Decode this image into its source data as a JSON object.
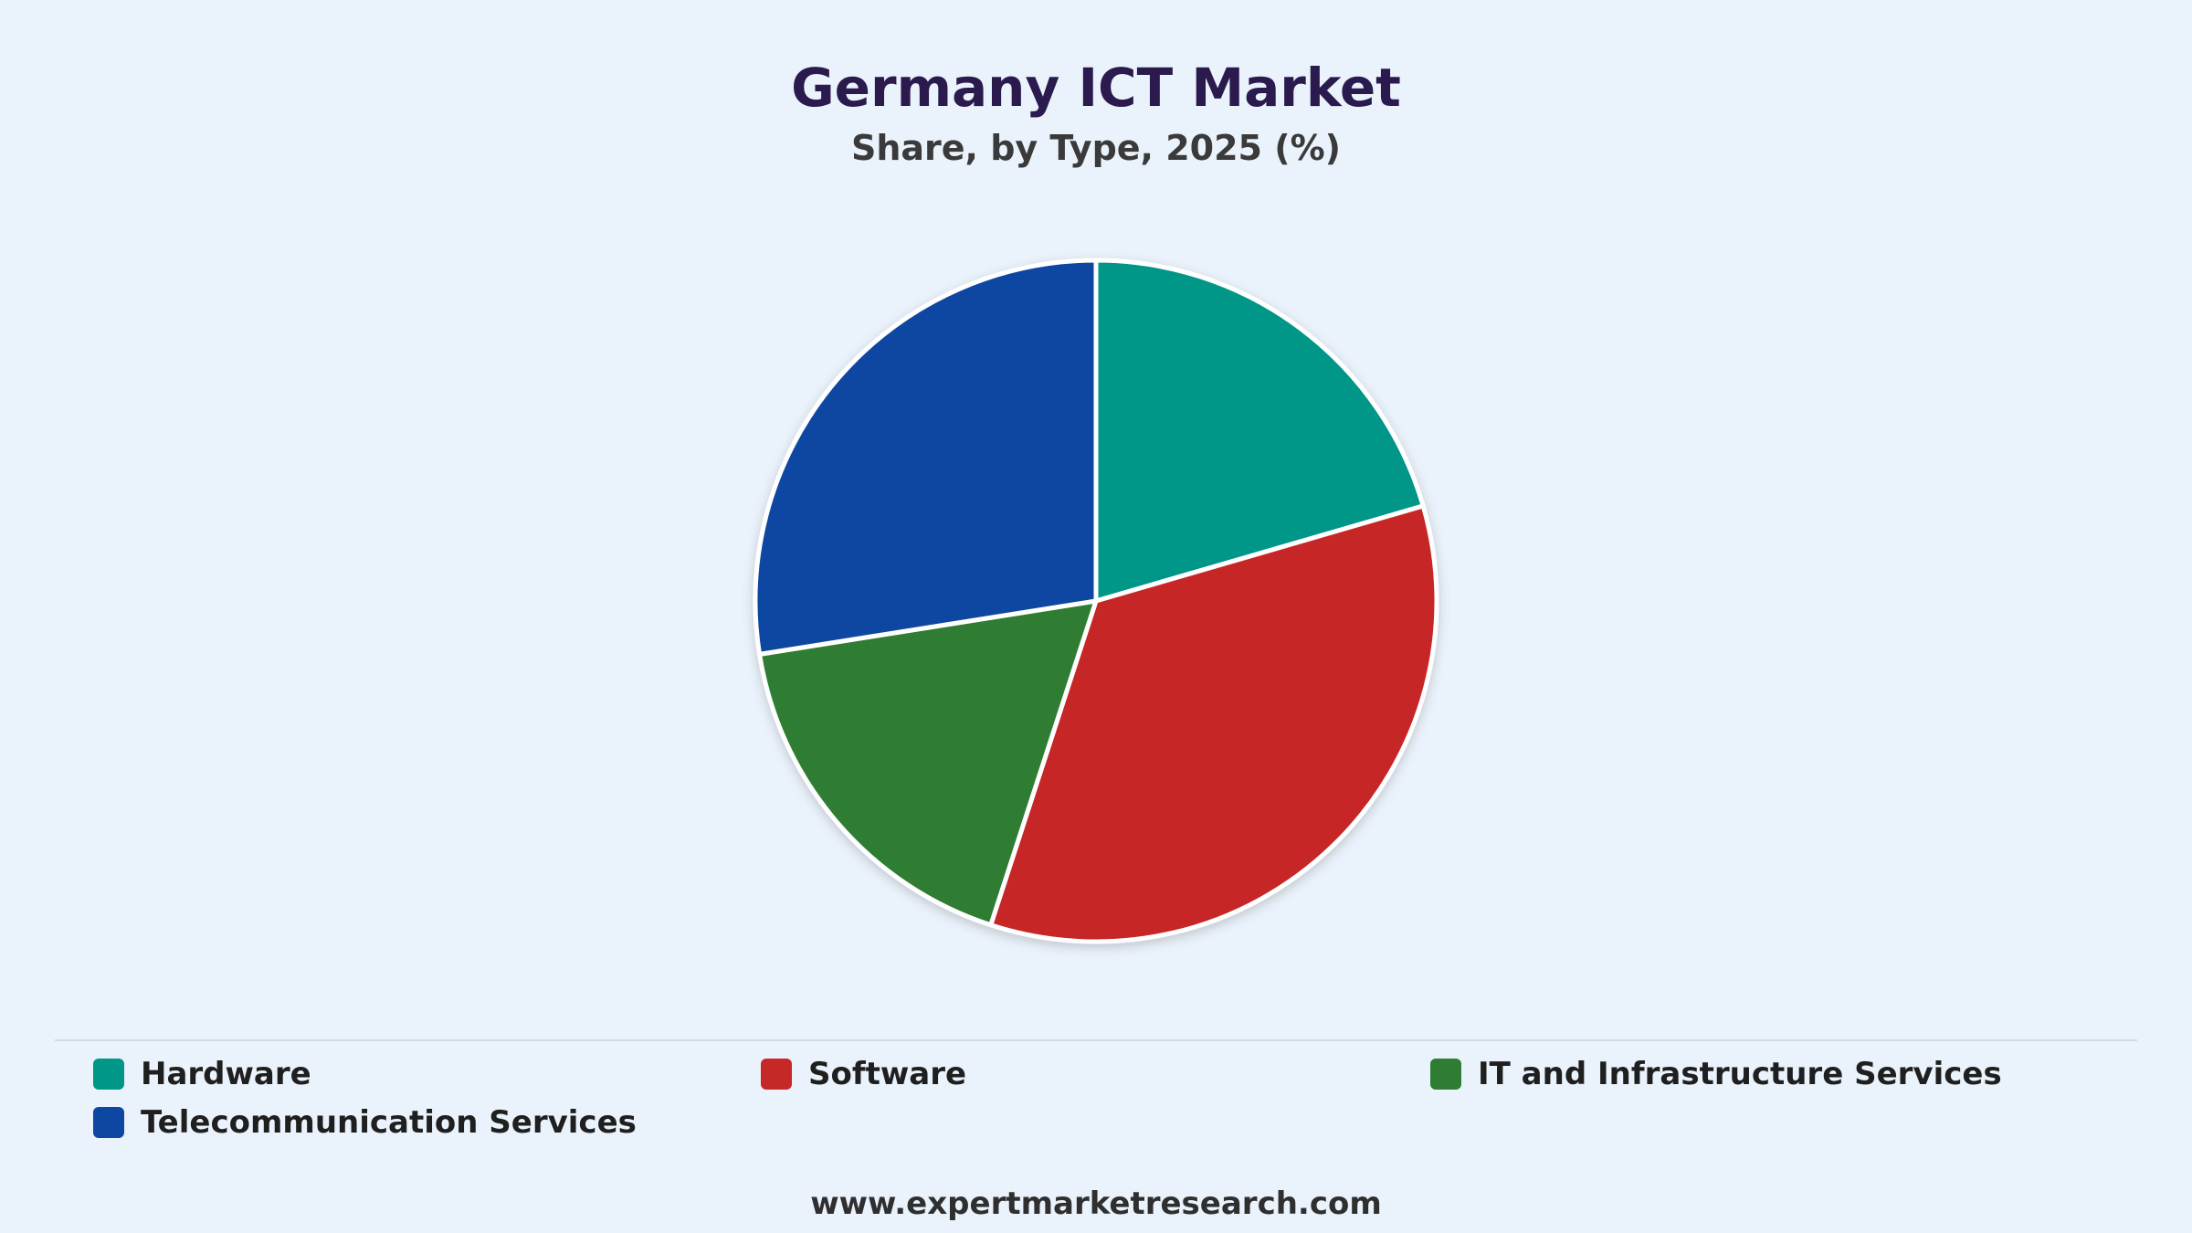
{
  "chart_data": {
    "type": "pie",
    "title": "Germany ICT Market",
    "subtitle": "Share, by Type, 2025 (%)",
    "categories": [
      "Hardware",
      "Software",
      "IT and Infrastructure Services",
      "Telecommunication Services"
    ],
    "values": [
      20.5,
      34.5,
      17.5,
      27.5
    ],
    "colors": [
      "#009688",
      "#c62828",
      "#2e7d32",
      "#0d47a1"
    ],
    "legend_position": "bottom"
  },
  "footer": {
    "source": "www.expertmarketresearch.com"
  }
}
